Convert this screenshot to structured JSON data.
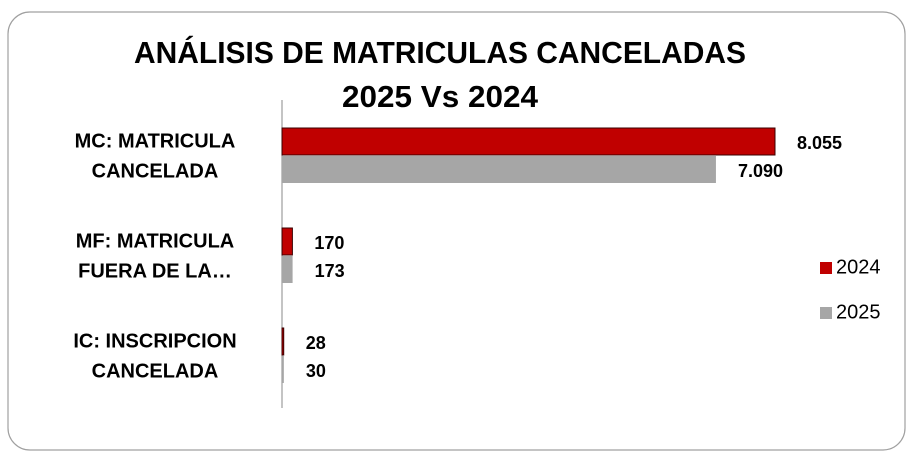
{
  "chart_data": {
    "type": "bar",
    "orientation": "horizontal",
    "title": [
      "ANÁLISIS DE MATRICULAS CANCELADAS",
      "2025 Vs 2024"
    ],
    "categories": [
      [
        "MC: MATRICULA",
        "CANCELADA"
      ],
      [
        "MF: MATRICULA",
        "FUERA DE LA…"
      ],
      [
        "IC: INSCRIPCION",
        "CANCELADA"
      ]
    ],
    "series": [
      {
        "name": "2024",
        "color": "#c00000",
        "values": [
          8055,
          170,
          28
        ],
        "value_labels": [
          "8.055",
          "170",
          "28"
        ]
      },
      {
        "name": "2025",
        "color": "#a6a6a6",
        "values": [
          7090,
          173,
          30
        ],
        "value_labels": [
          "7.090",
          "173",
          "30"
        ]
      }
    ],
    "legend": "right"
  }
}
